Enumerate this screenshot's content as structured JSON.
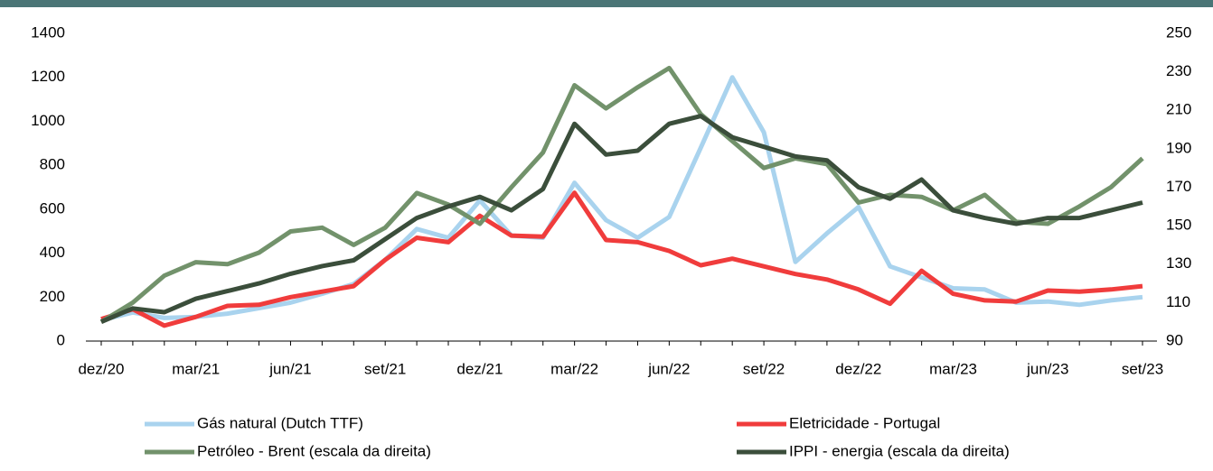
{
  "chart_data": {
    "type": "line",
    "categories": [
      "dez/20",
      null,
      null,
      "mar/21",
      null,
      null,
      "jun/21",
      null,
      null,
      "set/21",
      null,
      null,
      "dez/21",
      null,
      null,
      "mar/22",
      null,
      null,
      "jun/22",
      null,
      null,
      "set/22",
      null,
      null,
      "dez/22",
      null,
      null,
      "mar/23",
      null,
      null,
      "jun/23",
      null,
      null,
      "set/23"
    ],
    "series": [
      {
        "name": "Gás natural (Dutch TTF)",
        "color": "#a9d3ee",
        "values": [
          95,
          130,
          105,
          110,
          125,
          150,
          175,
          215,
          260,
          370,
          510,
          470,
          640,
          480,
          470,
          720,
          550,
          470,
          565,
          880,
          1200,
          950,
          360,
          490,
          610,
          340,
          290,
          240,
          235,
          175,
          180,
          165,
          185,
          200
        ]
      },
      {
        "name": "Eletricidade - Portugal",
        "color": "#f03c3c",
        "values": [
          100,
          145,
          70,
          110,
          160,
          165,
          200,
          225,
          250,
          370,
          470,
          450,
          570,
          480,
          475,
          675,
          460,
          450,
          410,
          345,
          375,
          340,
          305,
          280,
          235,
          170,
          320,
          215,
          185,
          180,
          230,
          225,
          235,
          250
        ]
      },
      {
        "name": "Petróleo - Brent (escala da direita)",
        "color": "#72926b",
        "axis": "y2",
        "values": [
          100,
          110,
          124,
          131,
          130,
          136,
          147,
          149,
          140,
          149,
          167,
          161,
          151,
          170,
          188,
          223,
          211,
          222,
          232,
          208,
          194,
          180,
          185,
          182,
          162,
          166,
          165,
          158,
          166,
          152,
          151,
          160,
          170,
          185
        ]
      },
      {
        "name": "IPPI - energia (escala da direita)",
        "color": "#3b4e3b",
        "axis": "y2",
        "values": [
          100,
          107,
          105,
          112,
          116,
          120,
          125,
          129,
          132,
          143,
          154,
          160,
          165,
          158,
          169,
          203,
          187,
          189,
          203,
          207,
          196,
          191,
          186,
          184,
          170,
          164,
          174,
          158,
          154,
          151,
          154,
          154,
          158,
          162
        ]
      }
    ],
    "ylim": [
      0,
      1400
    ],
    "yticks": [
      0,
      200,
      400,
      600,
      800,
      1000,
      1200,
      1400
    ],
    "y2lim": [
      90,
      250
    ],
    "y2ticks": [
      90,
      110,
      130,
      150,
      170,
      190,
      210,
      230,
      250
    ],
    "legend": "bottom"
  }
}
